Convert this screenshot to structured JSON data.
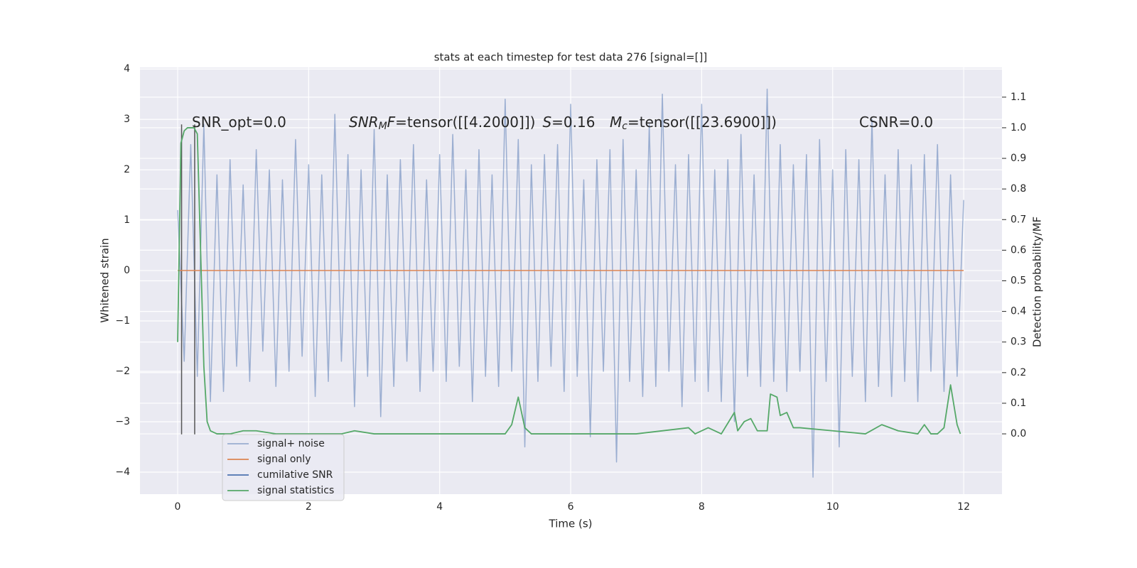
{
  "chart_data": {
    "type": "line",
    "title": "stats at each timestep for test data 276 [signal=[]]",
    "xlabel": "Time (s)",
    "ylabel": "Whitened strain",
    "y2label": "Detection probability/MF",
    "xlim": [
      -0.575,
      12.585
    ],
    "xticks": [
      0,
      2,
      4,
      6,
      8,
      10,
      12
    ],
    "ylim": [
      -4.437,
      4.03
    ],
    "yticks": [
      {
        "value": -4,
        "label": "−4"
      },
      {
        "value": -3,
        "label": "−3"
      },
      {
        "value": -2,
        "label": "−2"
      },
      {
        "value": -1,
        "label": "−1"
      },
      0,
      1,
      2,
      3,
      4
    ],
    "y2lim": [
      -0.197,
      1.197
    ],
    "y2ticks": [
      {
        "value": 0,
        "label": "0.0"
      },
      0.1,
      0.2,
      0.3,
      0.4,
      0.5,
      0.6,
      0.7,
      0.8,
      0.9,
      {
        "value": 1,
        "label": "1.0"
      },
      1.1
    ],
    "grid": true,
    "legend": "lower left",
    "series": [
      {
        "name": "signal+ noise",
        "color": "#4c72b0",
        "opacity": 0.5,
        "x": [
          0,
          0.1,
          0.2,
          0.3,
          0.4,
          0.5,
          0.6,
          0.7,
          0.8,
          0.9,
          1,
          1.1,
          1.2,
          1.3,
          1.4,
          1.5,
          1.6,
          1.7,
          1.8,
          1.9,
          2,
          2.1,
          2.2,
          2.3,
          2.4,
          2.5,
          2.6,
          2.7,
          2.8,
          2.9,
          3,
          3.1,
          3.2,
          3.3,
          3.4,
          3.5,
          3.6,
          3.7,
          3.8,
          3.9,
          4,
          4.1,
          4.2,
          4.3,
          4.4,
          4.5,
          4.6,
          4.7,
          4.8,
          4.9,
          5,
          5.1,
          5.2,
          5.3,
          5.4,
          5.5,
          5.6,
          5.7,
          5.8,
          5.9,
          6,
          6.1,
          6.2,
          6.3,
          6.4,
          6.5,
          6.6,
          6.7,
          6.8,
          6.9,
          7,
          7.1,
          7.2,
          7.3,
          7.4,
          7.5,
          7.6,
          7.7,
          7.8,
          7.9,
          8,
          8.1,
          8.2,
          8.3,
          8.4,
          8.5,
          8.6,
          8.7,
          8.8,
          8.9,
          9,
          9.1,
          9.2,
          9.3,
          9.4,
          9.5,
          9.6,
          9.7,
          9.8,
          9.9,
          10,
          10.1,
          10.2,
          10.3,
          10.4,
          10.5,
          10.6,
          10.7,
          10.8,
          10.9,
          11,
          11.1,
          11.2,
          11.3,
          11.4,
          11.5,
          11.6,
          11.7,
          11.8,
          11.9,
          12
        ],
        "values": [
          1.2,
          -1.8,
          2.5,
          -2.1,
          2.9,
          -2.6,
          1.9,
          -2.4,
          2.2,
          -1.9,
          1.7,
          -2.2,
          2.4,
          -1.6,
          2.0,
          -2.3,
          1.8,
          -2.0,
          2.6,
          -1.7,
          2.1,
          -2.5,
          1.9,
          -2.2,
          3.1,
          -1.8,
          2.3,
          -2.7,
          2.0,
          -2.1,
          2.8,
          -2.9,
          1.9,
          -2.3,
          2.2,
          -1.8,
          2.5,
          -2.4,
          1.8,
          -2.0,
          2.3,
          -2.2,
          2.7,
          -1.9,
          2.0,
          -2.6,
          2.4,
          -2.1,
          1.9,
          -2.3,
          3.4,
          -2.0,
          2.6,
          -3.5,
          2.1,
          -2.2,
          2.3,
          -1.9,
          2.5,
          -2.4,
          3.3,
          -2.1,
          1.8,
          -3.3,
          2.2,
          -2.0,
          2.4,
          -3.8,
          2.6,
          -2.2,
          2.0,
          -2.5,
          2.9,
          -2.3,
          3.5,
          -2.0,
          2.1,
          -2.7,
          2.3,
          -2.2,
          3.3,
          -2.4,
          2.0,
          -2.6,
          2.2,
          -3.0,
          2.7,
          -2.1,
          1.9,
          -2.3,
          3.6,
          -2.2,
          2.5,
          -2.4,
          2.1,
          -2.0,
          2.3,
          -4.1,
          2.6,
          -2.2,
          2.0,
          -3.5,
          2.4,
          -2.1,
          2.2,
          -2.6,
          3.0,
          -2.3,
          1.9,
          -2.5,
          2.4,
          -2.2,
          2.1,
          -2.6,
          2.3,
          -2.0,
          2.5,
          -2.4,
          1.9,
          -2.1,
          1.4
        ]
      },
      {
        "name": "signal only",
        "color": "#dd8452",
        "x": [
          0,
          12
        ],
        "values": [
          0,
          0
        ]
      },
      {
        "name": "cumilative SNR",
        "color": "#4c72b0",
        "x": [],
        "values": []
      },
      {
        "name": "signal statistics",
        "color": "#55a868",
        "axis": "y2",
        "x": [
          0,
          0.05,
          0.1,
          0.15,
          0.2,
          0.25,
          0.3,
          0.35,
          0.4,
          0.45,
          0.5,
          0.6,
          0.8,
          1.0,
          1.2,
          1.5,
          2.0,
          2.5,
          2.7,
          3.0,
          4,
          5,
          5.1,
          5.2,
          5.3,
          5.4,
          6,
          7,
          7.8,
          7.9,
          8.1,
          8.3,
          8.5,
          8.55,
          8.65,
          8.75,
          8.85,
          9.0,
          9.05,
          9.15,
          9.2,
          9.3,
          9.4,
          9.5,
          10,
          10.5,
          10.75,
          11,
          11.3,
          11.4,
          11.5,
          11.6,
          11.7,
          11.8,
          11.9,
          11.95
        ],
        "values": [
          0.3,
          0.95,
          0.99,
          1.0,
          1.0,
          1.0,
          0.98,
          0.6,
          0.22,
          0.04,
          0.01,
          0.0,
          0.0,
          0.01,
          0.01,
          0.0,
          0.0,
          0.0,
          0.01,
          0.0,
          0.0,
          0.0,
          0.03,
          0.12,
          0.02,
          0.0,
          0.0,
          0.0,
          0.02,
          0.0,
          0.02,
          0.0,
          0.07,
          0.01,
          0.04,
          0.05,
          0.01,
          0.01,
          0.13,
          0.12,
          0.06,
          0.07,
          0.02,
          0.02,
          0.01,
          0.0,
          0.03,
          0.01,
          0.0,
          0.03,
          0.0,
          0.0,
          0.02,
          0.16,
          0.03,
          0.0
        ]
      }
    ],
    "vlines": {
      "x": [
        0.06,
        0.26
      ],
      "ymin": -3.25,
      "ymax": 2.9,
      "color": "#555555"
    },
    "annotations": [
      [
        {
          "text": "SNR_opt=0.0",
          "style": "normal"
        }
      ],
      [
        {
          "text": "SNR",
          "style": "italic"
        },
        {
          "text": "M",
          "style": "sub"
        },
        {
          "text": "F",
          "style": "italic"
        },
        {
          "text": "=tensor([[4.2000]])",
          "style": "normal"
        },
        {
          "text": "S",
          "style": "italic"
        },
        {
          "text": "=0.16",
          "style": "normal"
        }
      ],
      [
        {
          "text": "M",
          "style": "italic"
        },
        {
          "text": "c",
          "style": "sub"
        },
        {
          "text": "=tensor([[23.6900]])",
          "style": "normal"
        }
      ],
      [
        {
          "text": "CSNR=0.0",
          "style": "normal"
        }
      ]
    ]
  }
}
